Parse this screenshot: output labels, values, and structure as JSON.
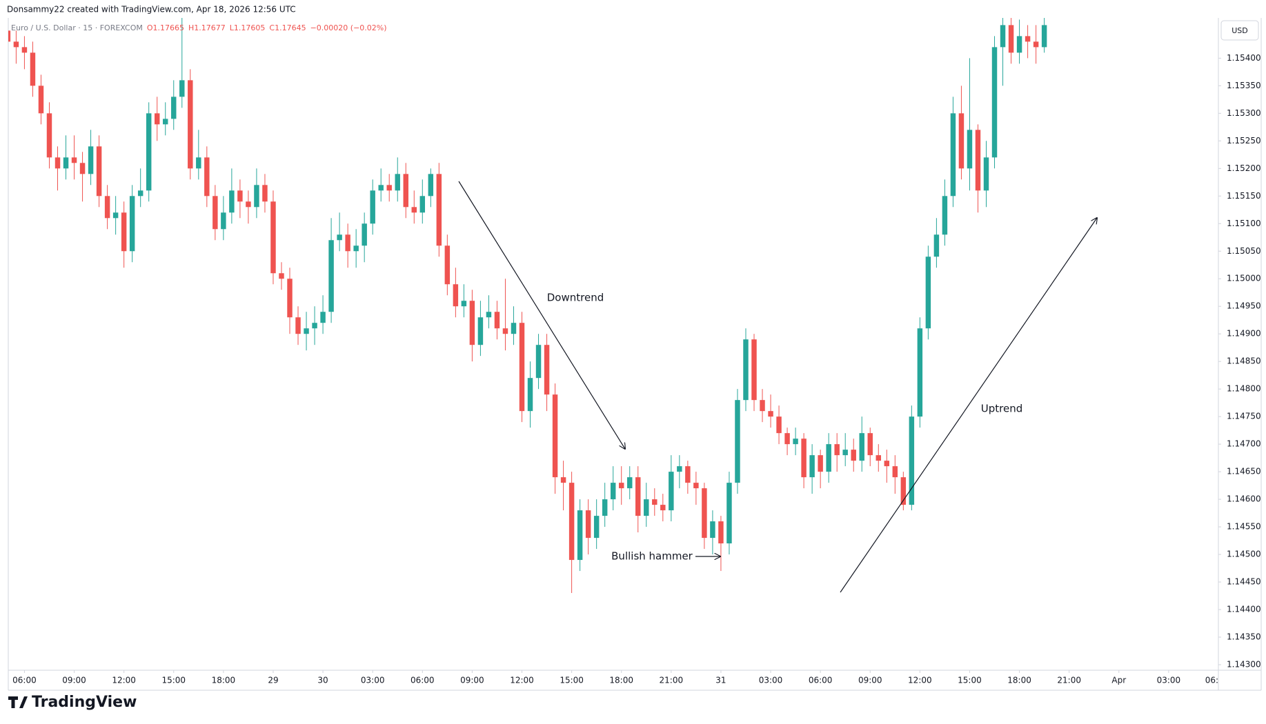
{
  "header": {
    "credit": "Donsammy22 created with TradingView.com, Apr 18, 2026 12:56 UTC",
    "brand": "TradingView"
  },
  "chart_data": {
    "type": "candlestick",
    "symbol": "Euro / U.S. Dollar · 15 · FOREXCOM",
    "ohlc_legend": [
      "O1.17665",
      "H1.17677",
      "L1.17605",
      "C1.17645",
      "−0.00020 (−0.02%)"
    ],
    "currency": "USD",
    "annotations": [
      "Downtrend",
      "Uptrend",
      "Bullish hammer"
    ],
    "up_color": "#26a69a",
    "down_color": "#ef5350",
    "open": [
      1.1545,
      1.1543,
      1.1542,
      1.1541,
      1.1535,
      1.153,
      1.1522,
      1.152,
      1.1522,
      1.1521,
      1.1519,
      1.1524,
      1.1515,
      1.1511,
      1.1512,
      1.1505,
      1.1515,
      1.1516,
      1.153,
      1.1528,
      1.1529,
      1.1533,
      1.1536,
      1.152,
      1.1522,
      1.1515,
      1.1509,
      1.1512,
      1.1516,
      1.1514,
      1.1513,
      1.1517,
      1.1514,
      1.1501,
      1.15,
      1.1493,
      1.149,
      1.1491,
      1.1492,
      1.1494,
      1.1507,
      1.1508,
      1.1505,
      1.1506,
      1.151,
      1.1516,
      1.1517,
      1.1516,
      1.1519,
      1.1513,
      1.1512,
      1.1515,
      1.1519,
      1.1506,
      1.1499,
      1.1495,
      1.1496,
      1.1488,
      1.1493,
      1.1494,
      1.1491,
      1.149,
      1.1492,
      1.1476,
      1.1482,
      1.1488,
      1.1479,
      1.1464,
      1.1463,
      1.1449,
      1.1458,
      1.1453,
      1.1457,
      1.146,
      1.1463,
      1.1462,
      1.1464,
      1.1457,
      1.146,
      1.1459,
      1.1458,
      1.1465,
      1.1466,
      1.1463,
      1.1462,
      1.1453,
      1.1456,
      1.1452,
      1.1463,
      1.1478,
      1.1489,
      1.1478,
      1.1476,
      1.1475,
      1.1472,
      1.147,
      1.1471,
      1.1464,
      1.1468,
      1.1465,
      1.147,
      1.1468,
      1.1469,
      1.1467,
      1.1472,
      1.1468,
      1.1467,
      1.1466,
      1.1464,
      1.1459,
      1.1475,
      1.1491,
      1.1504,
      1.1508,
      1.1515,
      1.153,
      1.152,
      1.1527,
      1.1516,
      1.1522,
      1.1542,
      1.1546,
      1.1541,
      1.1544,
      1.1543,
      1.1542
    ],
    "high": [
      1.1547,
      1.1545,
      1.1544,
      1.1543,
      1.1537,
      1.1532,
      1.1524,
      1.1526,
      1.1526,
      1.1523,
      1.1527,
      1.1526,
      1.1517,
      1.1515,
      1.1514,
      1.1517,
      1.152,
      1.1532,
      1.1533,
      1.1532,
      1.1536,
      1.1548,
      1.1538,
      1.1527,
      1.1524,
      1.1517,
      1.1515,
      1.152,
      1.1518,
      1.1516,
      1.152,
      1.1519,
      1.1516,
      1.1503,
      1.1502,
      1.1495,
      1.1494,
      1.1495,
      1.1497,
      1.1511,
      1.1512,
      1.151,
      1.1509,
      1.1512,
      1.1518,
      1.152,
      1.1519,
      1.1522,
      1.1521,
      1.1516,
      1.1518,
      1.152,
      1.1521,
      1.1508,
      1.1502,
      1.1499,
      1.1498,
      1.1496,
      1.1497,
      1.1496,
      1.15,
      1.1495,
      1.1494,
      1.1485,
      1.149,
      1.149,
      1.1481,
      1.1467,
      1.1465,
      1.146,
      1.146,
      1.146,
      1.1463,
      1.1466,
      1.1466,
      1.1466,
      1.1466,
      1.1463,
      1.1462,
      1.1461,
      1.1468,
      1.1468,
      1.1467,
      1.1465,
      1.1463,
      1.1458,
      1.1457,
      1.1465,
      1.148,
      1.1491,
      1.149,
      1.148,
      1.1479,
      1.1477,
      1.1473,
      1.1473,
      1.1472,
      1.147,
      1.1469,
      1.1472,
      1.1472,
      1.1472,
      1.1471,
      1.1475,
      1.1473,
      1.147,
      1.1469,
      1.1468,
      1.1465,
      1.1477,
      1.1493,
      1.1506,
      1.1511,
      1.1518,
      1.1533,
      1.1535,
      1.154,
      1.1528,
      1.1525,
      1.1544,
      1.155,
      1.1548,
      1.1547,
      1.1546,
      1.1546,
      1.1548
    ],
    "low": [
      1.1541,
      1.1539,
      1.1538,
      1.1533,
      1.1528,
      1.152,
      1.1516,
      1.1518,
      1.1518,
      1.1514,
      1.1517,
      1.1513,
      1.1509,
      1.1508,
      1.1502,
      1.1503,
      1.1513,
      1.1514,
      1.1525,
      1.1526,
      1.1527,
      1.1531,
      1.1518,
      1.1518,
      1.1513,
      1.1507,
      1.1507,
      1.151,
      1.1511,
      1.151,
      1.1511,
      1.1512,
      1.1499,
      1.1498,
      1.149,
      1.1488,
      1.1487,
      1.1488,
      1.149,
      1.1492,
      1.1505,
      1.1502,
      1.1502,
      1.1503,
      1.1508,
      1.1514,
      1.1514,
      1.1514,
      1.1511,
      1.151,
      1.151,
      1.1513,
      1.1504,
      1.1497,
      1.1493,
      1.1493,
      1.1485,
      1.1486,
      1.1491,
      1.1489,
      1.1487,
      1.1488,
      1.1474,
      1.1473,
      1.148,
      1.1476,
      1.1461,
      1.1458,
      1.1443,
      1.1447,
      1.145,
      1.1451,
      1.1455,
      1.1458,
      1.1459,
      1.146,
      1.1454,
      1.1455,
      1.1457,
      1.1456,
      1.1456,
      1.1462,
      1.1461,
      1.1459,
      1.1451,
      1.145,
      1.1447,
      1.145,
      1.1461,
      1.1476,
      1.1476,
      1.1474,
      1.1473,
      1.147,
      1.1468,
      1.1468,
      1.1462,
      1.1461,
      1.1462,
      1.1463,
      1.1465,
      1.1466,
      1.1465,
      1.1465,
      1.1466,
      1.1465,
      1.1463,
      1.1461,
      1.1458,
      1.1458,
      1.1473,
      1.1489,
      1.1502,
      1.1506,
      1.1513,
      1.1518,
      1.1516,
      1.1512,
      1.1513,
      1.152,
      1.1535,
      1.1539,
      1.1539,
      1.154,
      1.1539,
      1.1541
    ],
    "close": [
      1.1543,
      1.1542,
      1.1541,
      1.1535,
      1.153,
      1.1522,
      1.152,
      1.1522,
      1.1521,
      1.1519,
      1.1524,
      1.1515,
      1.1511,
      1.1512,
      1.1505,
      1.1515,
      1.1516,
      1.153,
      1.1528,
      1.1529,
      1.1533,
      1.1536,
      1.152,
      1.1522,
      1.1515,
      1.1509,
      1.1512,
      1.1516,
      1.1514,
      1.1513,
      1.1517,
      1.1514,
      1.1501,
      1.15,
      1.1493,
      1.149,
      1.1491,
      1.1492,
      1.1494,
      1.1507,
      1.1508,
      1.1505,
      1.1506,
      1.151,
      1.1516,
      1.1517,
      1.1516,
      1.1519,
      1.1513,
      1.1512,
      1.1515,
      1.1519,
      1.1506,
      1.1499,
      1.1495,
      1.1496,
      1.1488,
      1.1493,
      1.1494,
      1.1491,
      1.149,
      1.1492,
      1.1476,
      1.1482,
      1.1488,
      1.1479,
      1.1464,
      1.1463,
      1.1449,
      1.1458,
      1.1453,
      1.1457,
      1.146,
      1.1463,
      1.1462,
      1.1464,
      1.1457,
      1.146,
      1.1459,
      1.1458,
      1.1465,
      1.1466,
      1.1463,
      1.1462,
      1.1453,
      1.1456,
      1.1452,
      1.1463,
      1.1478,
      1.1489,
      1.1478,
      1.1476,
      1.1475,
      1.1472,
      1.147,
      1.1471,
      1.1464,
      1.1468,
      1.1465,
      1.147,
      1.1468,
      1.1469,
      1.1467,
      1.1472,
      1.1468,
      1.1467,
      1.1466,
      1.1464,
      1.1459,
      1.1475,
      1.1491,
      1.1504,
      1.1508,
      1.1515,
      1.153,
      1.152,
      1.1527,
      1.1516,
      1.1522,
      1.1542,
      1.1546,
      1.1541,
      1.1544,
      1.1543,
      1.1542,
      1.1546
    ],
    "xlim": [
      0.05,
      146
    ],
    "xticks": [
      {
        "value": 2,
        "label": "06:00"
      },
      {
        "value": 8,
        "label": "09:00"
      },
      {
        "value": 14,
        "label": "12:00"
      },
      {
        "value": 20,
        "label": "15:00"
      },
      {
        "value": 26,
        "label": "18:00"
      },
      {
        "value": 32,
        "label": "29"
      },
      {
        "value": 38,
        "label": "30"
      },
      {
        "value": 44,
        "label": "03:00"
      },
      {
        "value": 50,
        "label": "06:00"
      },
      {
        "value": 56,
        "label": "09:00"
      },
      {
        "value": 62,
        "label": "12:00"
      },
      {
        "value": 68,
        "label": "15:00"
      },
      {
        "value": 74,
        "label": "18:00"
      },
      {
        "value": 80,
        "label": "21:00"
      },
      {
        "value": 86,
        "label": "31"
      },
      {
        "value": 92,
        "label": "03:00"
      },
      {
        "value": 98,
        "label": "06:00"
      },
      {
        "value": 104,
        "label": "09:00"
      },
      {
        "value": 110,
        "label": "12:00"
      },
      {
        "value": 116,
        "label": "15:00"
      },
      {
        "value": 122,
        "label": "18:00"
      },
      {
        "value": 128,
        "label": "21:00"
      },
      {
        "value": 134,
        "label": "Apr"
      },
      {
        "value": 140,
        "label": "03:00"
      },
      {
        "value": 146,
        "label": "06:"
      }
    ],
    "ylim": [
      1.1429,
      1.15473
    ],
    "yticks": [
      {
        "value": 1.143,
        "label": "1.14300"
      },
      {
        "value": 1.1435,
        "label": "1.14350"
      },
      {
        "value": 1.144,
        "label": "1.14400"
      },
      {
        "value": 1.1445,
        "label": "1.14450"
      },
      {
        "value": 1.145,
        "label": "1.14500"
      },
      {
        "value": 1.1455,
        "label": "1.14550"
      },
      {
        "value": 1.146,
        "label": "1.14600"
      },
      {
        "value": 1.1465,
        "label": "1.14650"
      },
      {
        "value": 1.147,
        "label": "1.14700"
      },
      {
        "value": 1.1475,
        "label": "1.14750"
      },
      {
        "value": 1.148,
        "label": "1.14800"
      },
      {
        "value": 1.1485,
        "label": "1.14850"
      },
      {
        "value": 1.149,
        "label": "1.14900"
      },
      {
        "value": 1.1495,
        "label": "1.14950"
      },
      {
        "value": 1.15,
        "label": "1.15000"
      },
      {
        "value": 1.1505,
        "label": "1.15050"
      },
      {
        "value": 1.151,
        "label": "1.15100"
      },
      {
        "value": 1.1515,
        "label": "1.15150"
      },
      {
        "value": 1.152,
        "label": "1.15200"
      },
      {
        "value": 1.1525,
        "label": "1.15250"
      },
      {
        "value": 1.153,
        "label": "1.15300"
      },
      {
        "value": 1.1535,
        "label": "1.15350"
      },
      {
        "value": 1.154,
        "label": "1.15400"
      }
    ]
  }
}
